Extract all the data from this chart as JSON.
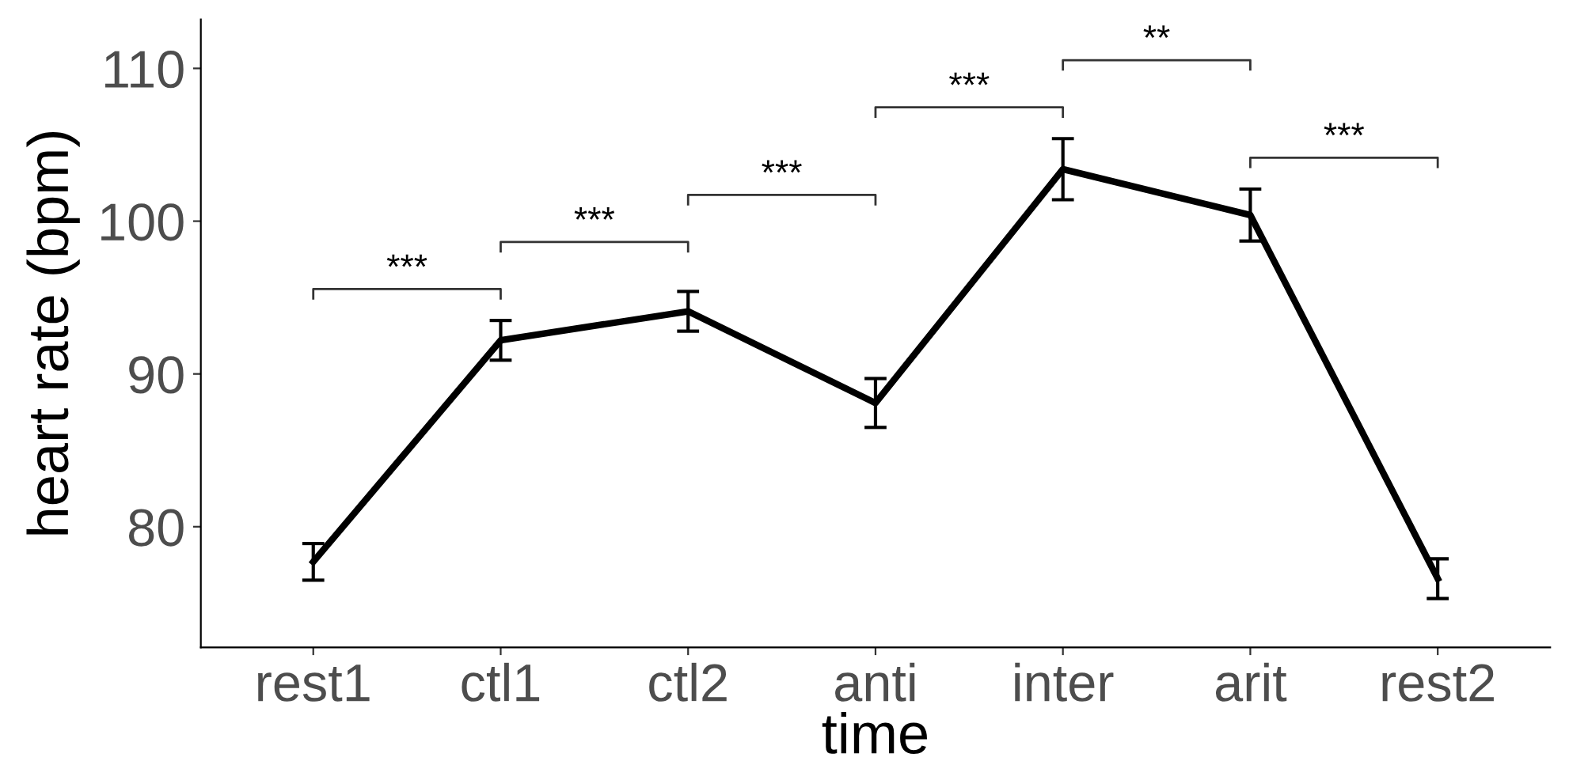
{
  "chart_data": {
    "type": "line",
    "xlabel": "time",
    "ylabel": "heart rate (bpm)",
    "categories": [
      "rest1",
      "ctl1",
      "ctl2",
      "anti",
      "inter",
      "arit",
      "rest2"
    ],
    "series": [
      {
        "color": "#000000",
        "values": [
          77.7,
          92.2,
          94.1,
          88.1,
          103.4,
          100.4,
          76.6
        ],
        "errors": [
          1.2,
          1.3,
          1.3,
          1.6,
          2.0,
          1.7,
          1.3
        ]
      }
    ],
    "ylim": [
      72.1,
      113.2
    ],
    "yticks": [
      80,
      90,
      100,
      110
    ],
    "annotations": [
      "***",
      "***",
      "***",
      "***",
      "**",
      "***"
    ],
    "grid": false,
    "marker": "none",
    "line_style": "solid"
  }
}
